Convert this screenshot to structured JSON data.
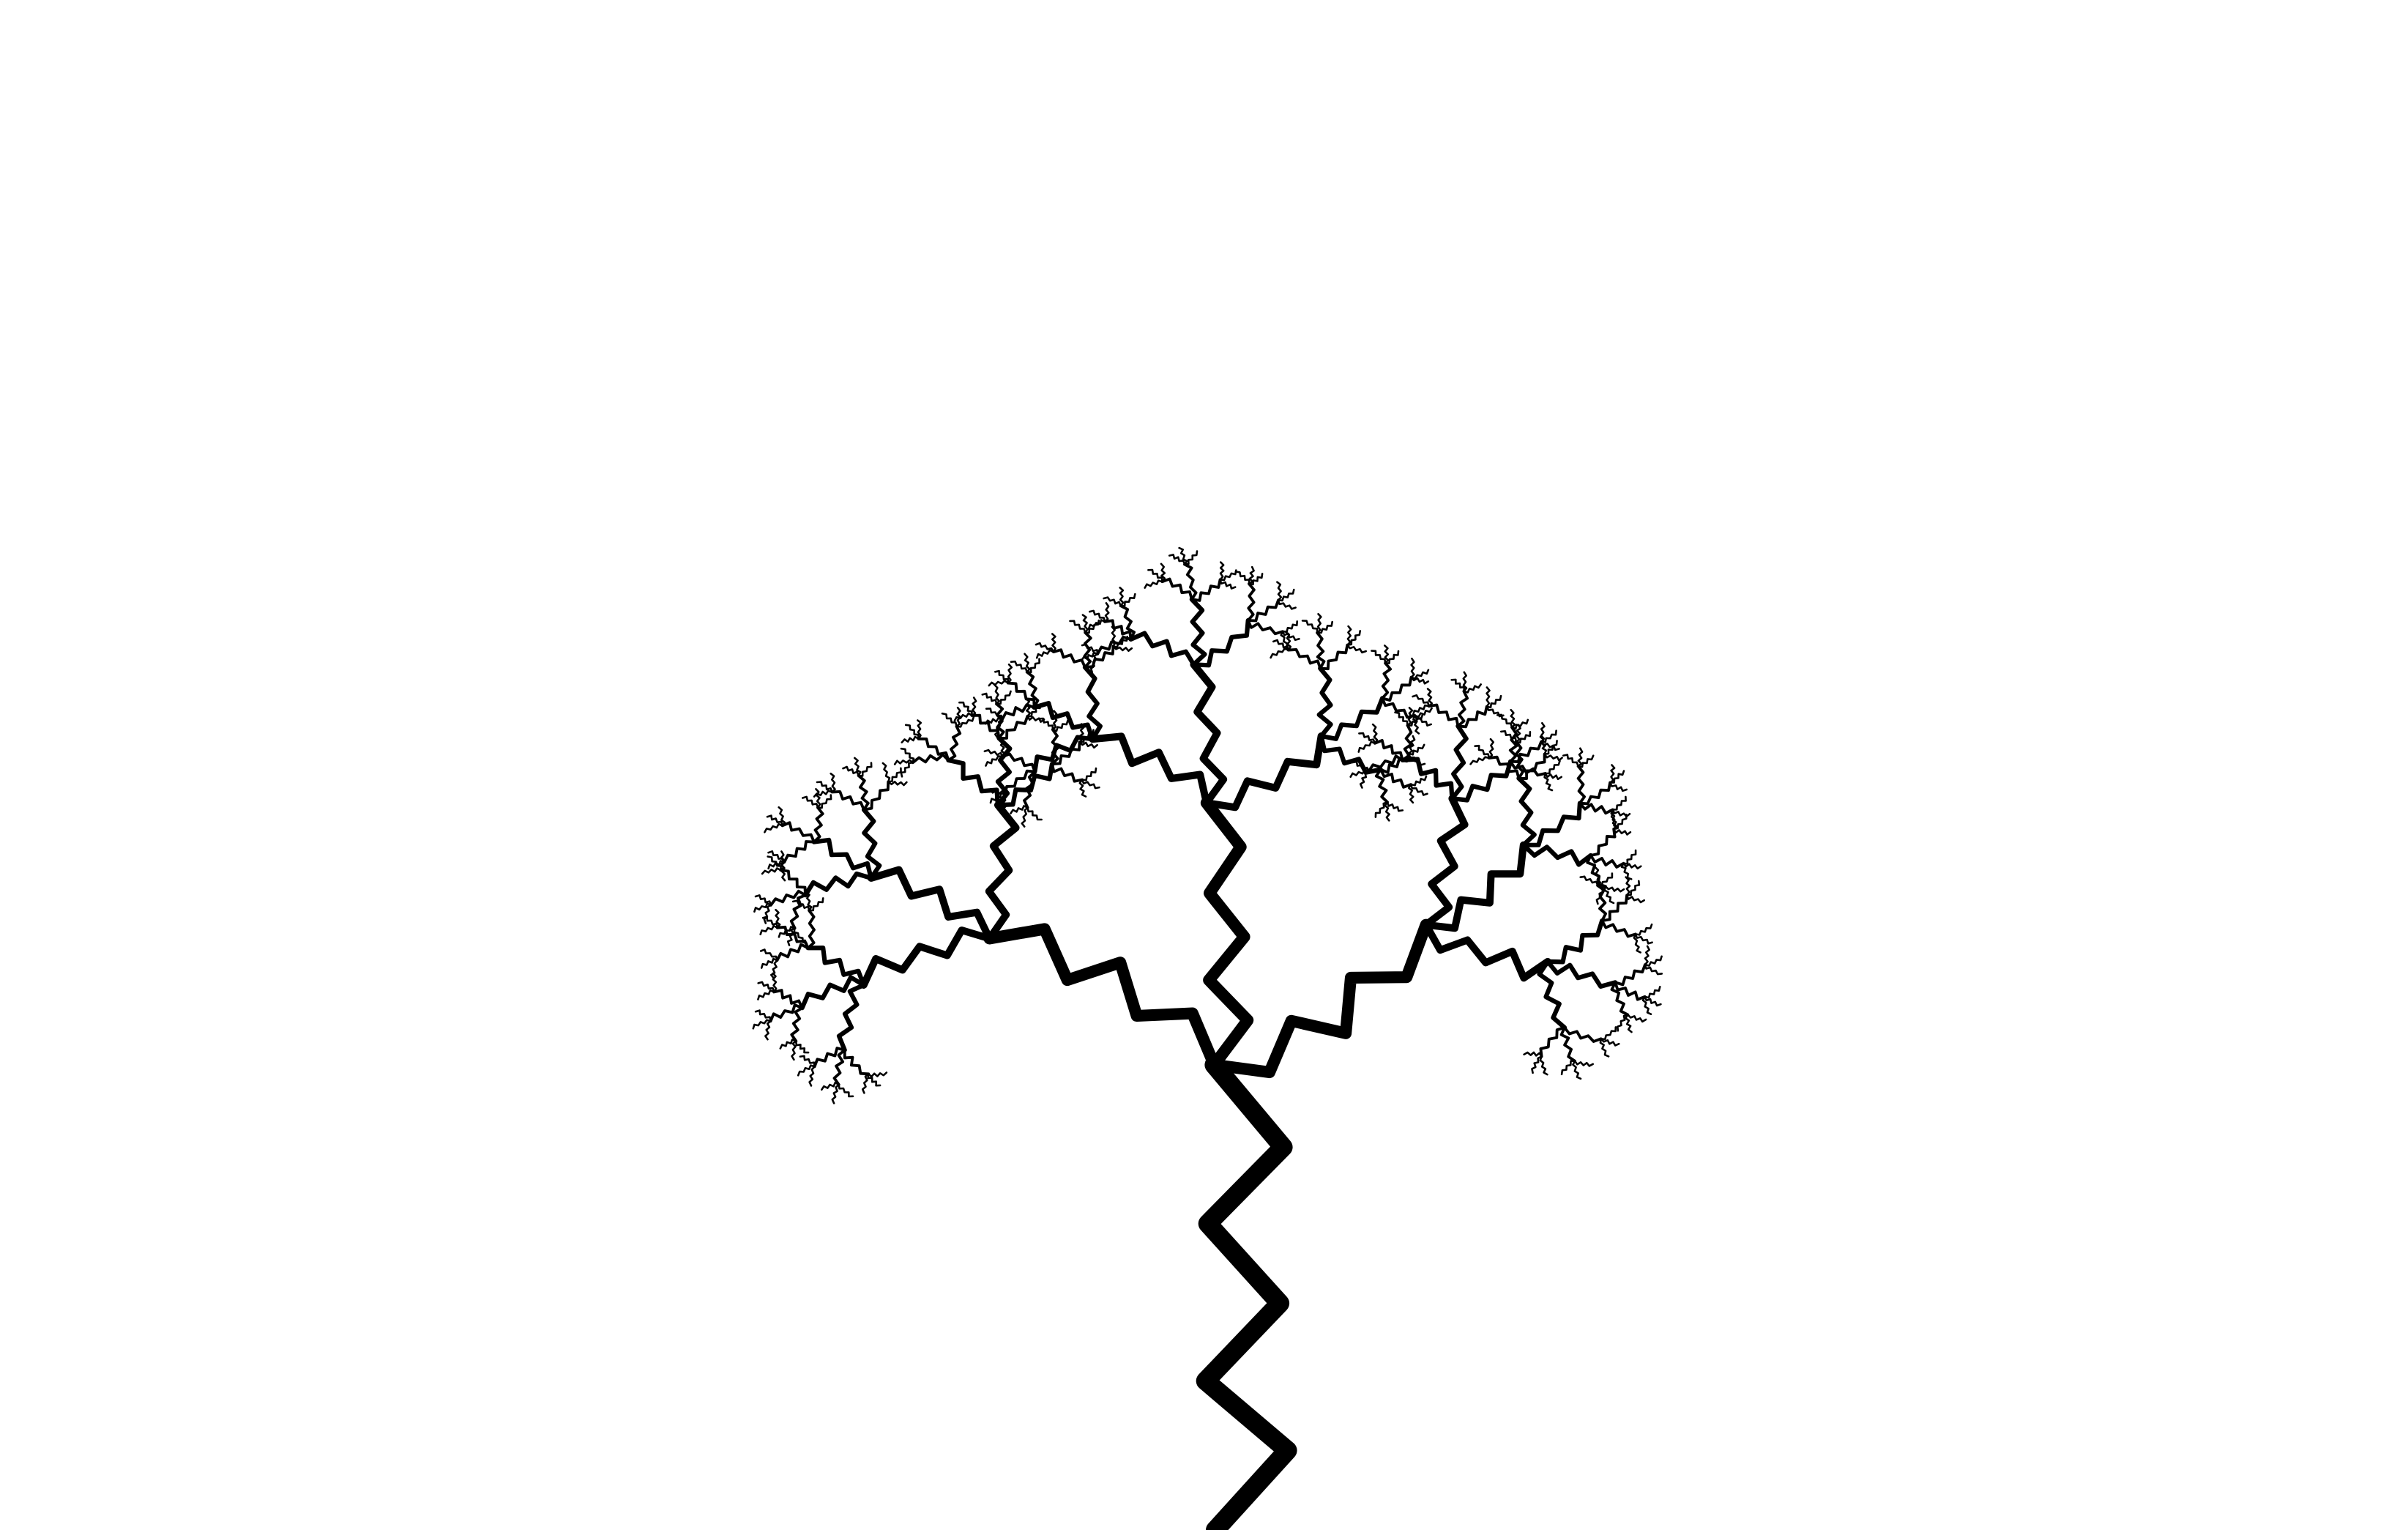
{
  "background_color": "#ffffff",
  "stroke_color": "#000000",
  "subject": {
    "icon": "fractal-tree-icon",
    "recursion_depth": 6,
    "branching_factor": 3,
    "zigzag_segments_per_branch": 6
  }
}
